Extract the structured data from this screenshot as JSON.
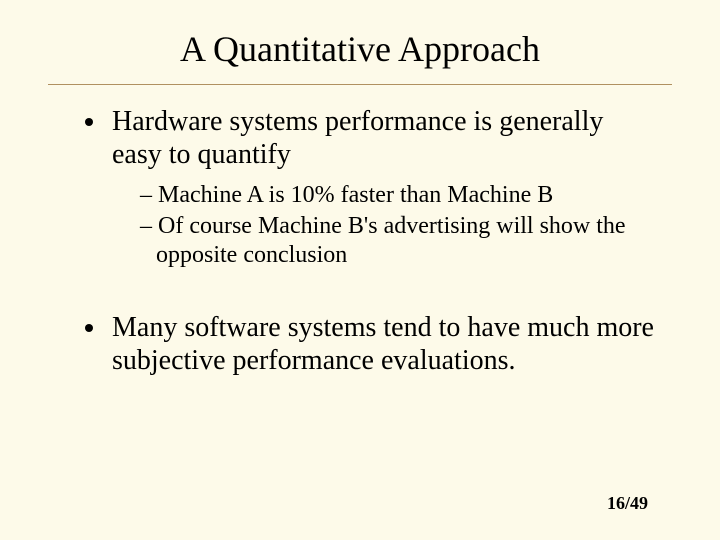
{
  "title": "A Quantitative Approach",
  "bullets": [
    {
      "text": "Hardware systems performance is generally easy to quantify",
      "sub": [
        "Machine A is 10% faster than Machine B",
        "Of course Machine B's advertising will show the opposite conclusion"
      ]
    },
    {
      "text": "Many software systems tend to have much more subjective performance evaluations."
    }
  ],
  "page": "16/49"
}
